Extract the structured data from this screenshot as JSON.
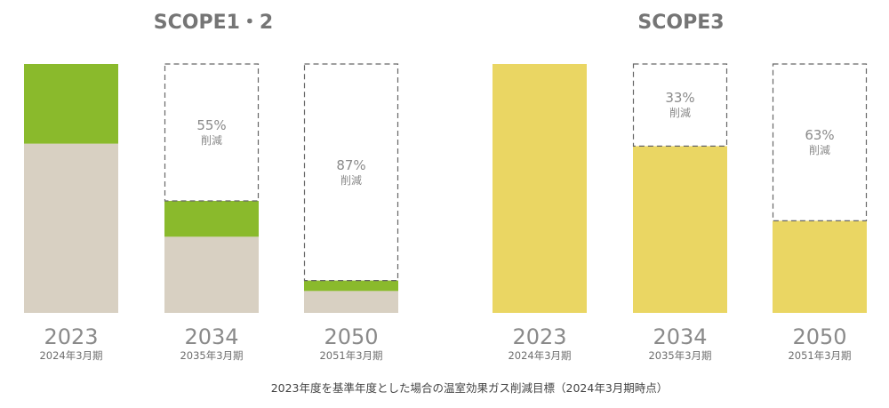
{
  "footnote": "2023年度を基準年度とした場合の温室効果ガス削減目標（2024年3月期時点）",
  "chart_data": [
    {
      "type": "bar",
      "title": "SCOPE1・2",
      "categories": [
        "2023",
        "2034",
        "2050"
      ],
      "sublabels": [
        "2024年3月期",
        "2035年3月期",
        "2051年3月期"
      ],
      "stack_labels": [
        "",
        "55%\n削減",
        "87%\n削減"
      ],
      "reduction_percent": [
        0,
        55,
        87
      ],
      "series": [
        {
          "color": "#d8d0c2",
          "values": [
            68,
            30.6,
            8.8
          ]
        },
        {
          "color": "#8aba2c",
          "values": [
            32,
            14.4,
            4.2
          ]
        }
      ],
      "ylim": [
        0,
        100
      ],
      "grid": false
    },
    {
      "type": "bar",
      "title": "SCOPE3",
      "categories": [
        "2023",
        "2034",
        "2050"
      ],
      "sublabels": [
        "2024年3月期",
        "2035年3月期",
        "2051年3月期"
      ],
      "stack_labels": [
        "",
        "33%\n削減",
        "63%\n削減"
      ],
      "reduction_percent": [
        0,
        33,
        63
      ],
      "series": [
        {
          "color": "#ead663",
          "values": [
            100,
            67,
            37
          ]
        }
      ],
      "ylim": [
        0,
        100
      ],
      "grid": false
    }
  ]
}
